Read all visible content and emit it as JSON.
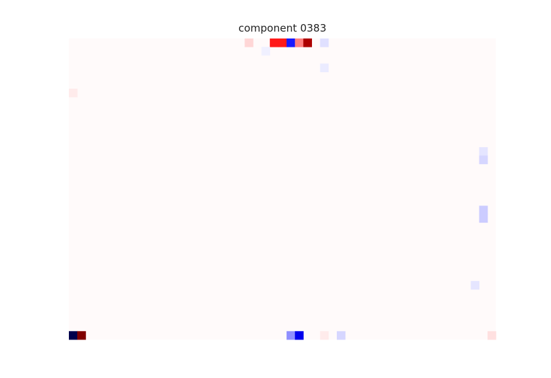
{
  "chart_data": {
    "type": "heatmap",
    "title": "component 0383",
    "xlabel": "",
    "ylabel": "",
    "grid": false,
    "colormap": "seismic",
    "vmin": -1,
    "vmax": 1,
    "n_cols": 51,
    "n_rows": 36,
    "background_value": 0.01,
    "cells": [
      {
        "row": 0,
        "col": 21,
        "value": 0.08
      },
      {
        "row": 0,
        "col": 24,
        "value": 0.45
      },
      {
        "row": 0,
        "col": 25,
        "value": 0.45
      },
      {
        "row": 0,
        "col": 26,
        "value": -0.45
      },
      {
        "row": 0,
        "col": 27,
        "value": 0.25
      },
      {
        "row": 0,
        "col": 28,
        "value": 0.82
      },
      {
        "row": 0,
        "col": 30,
        "value": -0.06
      },
      {
        "row": 1,
        "col": 23,
        "value": -0.03
      },
      {
        "row": 3,
        "col": 30,
        "value": -0.04
      },
      {
        "row": 6,
        "col": 0,
        "value": 0.04
      },
      {
        "row": 13,
        "col": 49,
        "value": -0.05
      },
      {
        "row": 14,
        "col": 49,
        "value": -0.08
      },
      {
        "row": 20,
        "col": 49,
        "value": -0.1
      },
      {
        "row": 21,
        "col": 49,
        "value": -0.1
      },
      {
        "row": 29,
        "col": 48,
        "value": -0.05
      },
      {
        "row": 35,
        "col": 0,
        "value": -1.0
      },
      {
        "row": 35,
        "col": 1,
        "value": 1.0
      },
      {
        "row": 35,
        "col": 26,
        "value": -0.22
      },
      {
        "row": 35,
        "col": 27,
        "value": -0.55
      },
      {
        "row": 35,
        "col": 30,
        "value": 0.04
      },
      {
        "row": 35,
        "col": 32,
        "value": -0.08
      },
      {
        "row": 35,
        "col": 50,
        "value": 0.06
      }
    ]
  }
}
